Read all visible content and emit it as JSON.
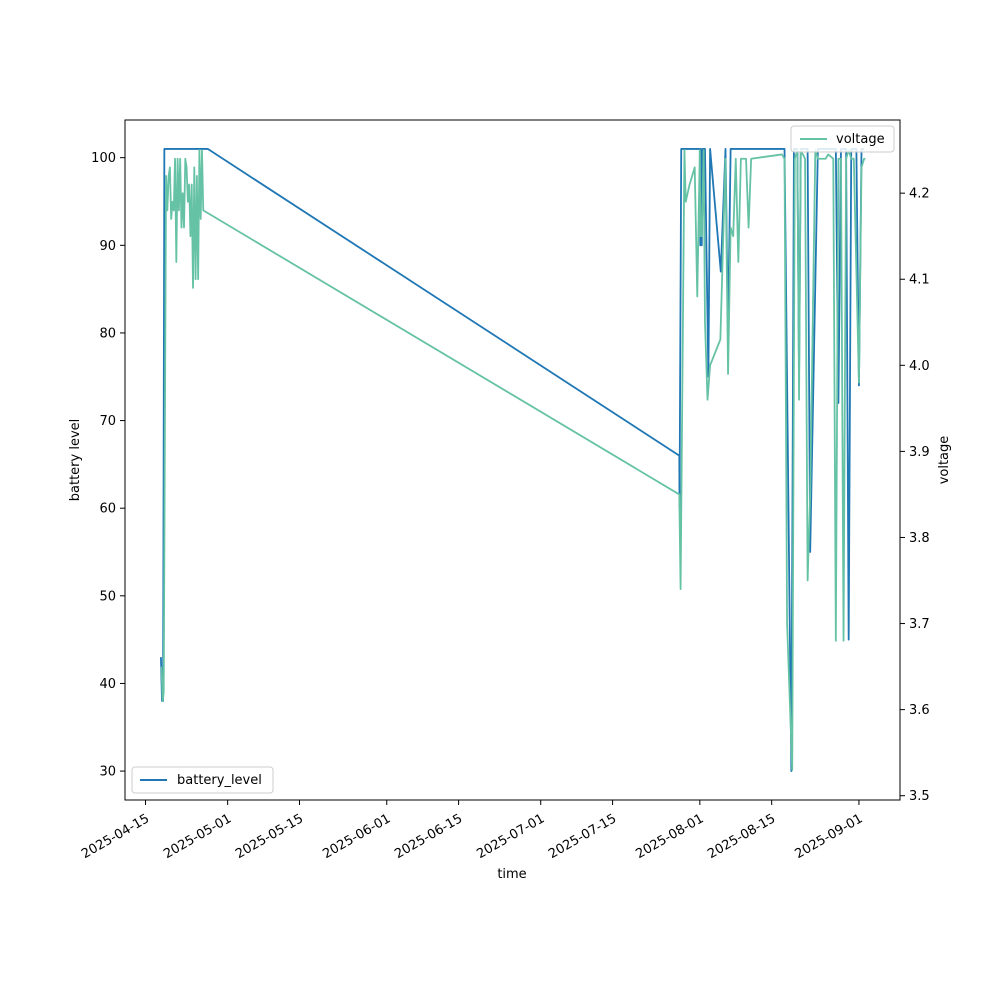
{
  "chart_data": {
    "type": "line",
    "title": "",
    "xlabel": "time",
    "ylabel_left": "battery level",
    "ylabel_right": "voltage",
    "x_ticks": [
      "2025-04-15",
      "2025-05-01",
      "2025-05-15",
      "2025-06-01",
      "2025-06-15",
      "2025-07-01",
      "2025-07-15",
      "2025-08-01",
      "2025-08-15",
      "2025-09-01"
    ],
    "xlim": [
      "2025-04-11",
      "2025-09-09"
    ],
    "ylim_left": [
      26.7,
      104.3
    ],
    "yticks_left": [
      "30",
      "40",
      "50",
      "60",
      "70",
      "80",
      "90",
      "100"
    ],
    "ylim_right": [
      3.495,
      4.285
    ],
    "yticks_right": [
      "3.5",
      "3.6",
      "3.7",
      "3.8",
      "3.9",
      "4.0",
      "4.1",
      "4.2"
    ],
    "grid": false,
    "legend_left": {
      "placement": "bottom-left",
      "label": "battery_level"
    },
    "legend_right": {
      "placement": "top-right",
      "label": "voltage"
    },
    "colors": {
      "battery_level": "#1f77b4",
      "voltage": "#66c2a5"
    },
    "series": [
      {
        "name": "battery_level",
        "axis": "left",
        "points": [
          [
            "2025-04-18T00:00",
            43
          ],
          [
            "2025-04-18T05:00",
            38
          ],
          [
            "2025-04-18T10:00",
            38
          ],
          [
            "2025-04-18T16:00",
            101
          ],
          [
            "2025-04-27T00:00",
            101
          ],
          [
            "2025-04-27T03:00",
            101
          ],
          [
            "2025-07-28T00:00",
            66
          ],
          [
            "2025-07-28T01:00",
            60
          ],
          [
            "2025-07-28T09:00",
            101
          ],
          [
            "2025-08-01T00:00",
            101
          ],
          [
            "2025-08-01T02:00",
            90
          ],
          [
            "2025-08-01T05:00",
            101
          ],
          [
            "2025-08-01T09:00",
            90
          ],
          [
            "2025-08-01T13:00",
            101
          ],
          [
            "2025-08-02T00:00",
            101
          ],
          [
            "2025-08-02T16:00",
            75
          ],
          [
            "2025-08-03T00:00",
            101
          ],
          [
            "2025-08-05T02:00",
            87
          ],
          [
            "2025-08-06T00:00",
            101
          ],
          [
            "2025-08-06T12:00",
            80
          ],
          [
            "2025-08-07T00:00",
            101
          ],
          [
            "2025-08-17T12:00",
            101
          ],
          [
            "2025-08-18T20:00",
            30
          ],
          [
            "2025-08-19T08:00",
            101
          ],
          [
            "2025-08-20T00:00",
            101
          ],
          [
            "2025-08-20T08:00",
            75
          ],
          [
            "2025-08-20T16:00",
            101
          ],
          [
            "2025-08-22T00:00",
            101
          ],
          [
            "2025-08-22T12:00",
            55
          ],
          [
            "2025-08-24T00:00",
            101
          ],
          [
            "2025-08-27T12:00",
            101
          ],
          [
            "2025-08-28T00:00",
            72
          ],
          [
            "2025-08-28T12:00",
            101
          ],
          [
            "2025-08-29T12:00",
            101
          ],
          [
            "2025-08-30T00:00",
            45
          ],
          [
            "2025-08-30T12:00",
            101
          ],
          [
            "2025-08-31T12:00",
            101
          ],
          [
            "2025-09-01T00:00",
            74
          ],
          [
            "2025-09-01T12:00",
            101
          ],
          [
            "2025-09-02T00:00",
            101
          ]
        ]
      },
      {
        "name": "voltage",
        "axis": "right",
        "points": [
          [
            "2025-04-18T03:00",
            3.65
          ],
          [
            "2025-04-18T08:00",
            3.61
          ],
          [
            "2025-04-18T13:00",
            3.62
          ],
          [
            "2025-04-19T00:00",
            4.22
          ],
          [
            "2025-04-19T06:00",
            4.18
          ],
          [
            "2025-04-19T12:00",
            4.22
          ],
          [
            "2025-04-19T18:00",
            4.23
          ],
          [
            "2025-04-20T00:00",
            4.17
          ],
          [
            "2025-04-20T06:00",
            4.19
          ],
          [
            "2025-04-20T12:00",
            4.18
          ],
          [
            "2025-04-20T18:00",
            4.24
          ],
          [
            "2025-04-21T00:00",
            4.12
          ],
          [
            "2025-04-21T06:00",
            4.24
          ],
          [
            "2025-04-21T12:00",
            4.18
          ],
          [
            "2025-04-21T18:00",
            4.24
          ],
          [
            "2025-04-22T00:00",
            4.16
          ],
          [
            "2025-04-22T06:00",
            4.2
          ],
          [
            "2025-04-22T12:00",
            4.16
          ],
          [
            "2025-04-22T18:00",
            4.24
          ],
          [
            "2025-04-23T00:00",
            4.23
          ],
          [
            "2025-04-23T06:00",
            4.19
          ],
          [
            "2025-04-23T12:00",
            4.21
          ],
          [
            "2025-04-23T18:00",
            4.15
          ],
          [
            "2025-04-24T00:00",
            4.21
          ],
          [
            "2025-04-24T06:00",
            4.09
          ],
          [
            "2025-04-24T12:00",
            4.23
          ],
          [
            "2025-04-24T18:00",
            4.1
          ],
          [
            "2025-04-25T00:00",
            4.22
          ],
          [
            "2025-04-25T06:00",
            4.1
          ],
          [
            "2025-04-25T12:00",
            4.25
          ],
          [
            "2025-04-25T18:00",
            4.17
          ],
          [
            "2025-04-26T00:00",
            4.25
          ],
          [
            "2025-04-26T06:00",
            4.18
          ],
          [
            "2025-07-28T00:00",
            3.85
          ],
          [
            "2025-07-28T06:00",
            3.74
          ],
          [
            "2025-07-29T00:00",
            4.25
          ],
          [
            "2025-07-29T06:00",
            4.19
          ],
          [
            "2025-07-30T00:00",
            4.21
          ],
          [
            "2025-07-31T00:00",
            4.23
          ],
          [
            "2025-07-31T12:00",
            4.08
          ],
          [
            "2025-08-01T00:00",
            4.25
          ],
          [
            "2025-08-01T03:00",
            4.15
          ],
          [
            "2025-08-01T06:00",
            4.17
          ],
          [
            "2025-08-01T09:00",
            4.15
          ],
          [
            "2025-08-01T18:00",
            4.25
          ],
          [
            "2025-08-02T00:00",
            4.05
          ],
          [
            "2025-08-02T12:00",
            3.96
          ],
          [
            "2025-08-03T00:00",
            4.0
          ],
          [
            "2025-08-05T00:00",
            4.03
          ],
          [
            "2025-08-06T00:00",
            4.24
          ],
          [
            "2025-08-06T12:00",
            3.99
          ],
          [
            "2025-08-07T00:00",
            4.16
          ],
          [
            "2025-08-07T12:00",
            4.15
          ],
          [
            "2025-08-08T00:00",
            4.24
          ],
          [
            "2025-08-08T12:00",
            4.12
          ],
          [
            "2025-08-09T00:00",
            4.24
          ],
          [
            "2025-08-10T00:00",
            4.24
          ],
          [
            "2025-08-10T12:00",
            4.16
          ],
          [
            "2025-08-11T00:00",
            4.24
          ],
          [
            "2025-08-17T00:00",
            4.245
          ],
          [
            "2025-08-17T12:00",
            4.24
          ],
          [
            "2025-08-18T00:00",
            3.7
          ],
          [
            "2025-08-19T00:00",
            3.53
          ],
          [
            "2025-08-19T12:00",
            4.24
          ],
          [
            "2025-08-20T00:00",
            4.25
          ],
          [
            "2025-08-20T08:00",
            3.96
          ],
          [
            "2025-08-20T16:00",
            4.25
          ],
          [
            "2025-08-21T12:00",
            4.24
          ],
          [
            "2025-08-22T00:00",
            3.75
          ],
          [
            "2025-08-22T12:00",
            3.85
          ],
          [
            "2025-08-23T12:00",
            4.25
          ],
          [
            "2025-08-24T00:00",
            4.24
          ],
          [
            "2025-08-25T00:00",
            4.24
          ],
          [
            "2025-08-25T12:00",
            4.24
          ],
          [
            "2025-08-26T00:00",
            4.245
          ],
          [
            "2025-08-27T00:00",
            4.24
          ],
          [
            "2025-08-27T12:00",
            3.68
          ],
          [
            "2025-08-28T00:00",
            4.24
          ],
          [
            "2025-08-28T12:00",
            4.24
          ],
          [
            "2025-08-29T00:00",
            3.68
          ],
          [
            "2025-08-29T12:00",
            4.24
          ],
          [
            "2025-08-30T00:00",
            4.25
          ],
          [
            "2025-08-30T12:00",
            4.24
          ],
          [
            "2025-08-31T00:00",
            4.24
          ],
          [
            "2025-09-01T00:00",
            3.98
          ],
          [
            "2025-09-01T12:00",
            4.23
          ],
          [
            "2025-09-02T00:00",
            4.24
          ],
          [
            "2025-09-02T06:00",
            4.24
          ]
        ]
      }
    ]
  }
}
